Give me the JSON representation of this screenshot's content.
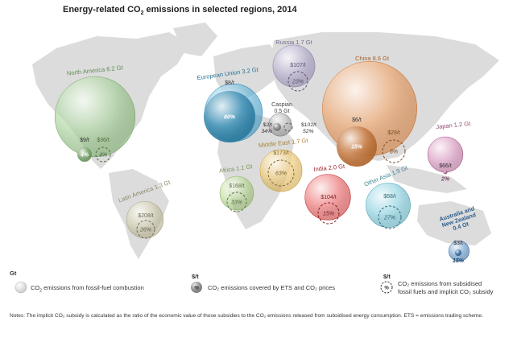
{
  "title": {
    "prefix": "Energy-related CO",
    "sub": "2",
    "suffix": " emissions in selected regions, 2014"
  },
  "chart_data": {
    "type": "bubble-map",
    "regions": [
      {
        "name": "North America",
        "gt_label": "6.2 Gt",
        "emissions_gt": 6.2,
        "subsidy_label": "$36/t",
        "subsidy_pct_label": "4%",
        "ets_label": "$9/t",
        "ets_pct_label": "4%",
        "color": "#8cc77a"
      },
      {
        "name": "European Union",
        "gt_label": "3.2 Gt",
        "emissions_gt": 3.2,
        "ets_label": "$8/t",
        "ets_pct_label": "60%",
        "color": "#3aa6d8"
      },
      {
        "name": "Russia",
        "gt_label": "1.7 Gt",
        "emissions_gt": 1.7,
        "subsidy_label": "$107/t",
        "subsidy_pct_label": "23%",
        "color": "#a79ac9"
      },
      {
        "name": "Caspian",
        "gt_label": "0.5 Gt",
        "emissions_gt": 0.5,
        "ets_label": "$2/t",
        "ets_pct_label": "34%",
        "subsidy_label": "$102/t",
        "subsidy_pct_label": "52%",
        "color": "#9a9a9a"
      },
      {
        "name": "China",
        "gt_label": "8.6 Gt",
        "emissions_gt": 8.6,
        "ets_label": "$6/t",
        "ets_pct_label": "15%",
        "subsidy_label": "$29/t",
        "subsidy_pct_label": "8%",
        "color": "#f08a3c"
      },
      {
        "name": "Japan",
        "gt_label": "1.2 Gt",
        "emissions_gt": 1.2,
        "ets_label": "$66/t",
        "ets_pct_label": "2%",
        "color": "#c86fa6"
      },
      {
        "name": "Middle East",
        "gt_label": "1.7 Gt",
        "emissions_gt": 1.7,
        "subsidy_label": "$173/t",
        "subsidy_pct_label": "63%",
        "color": "#f2c04b"
      },
      {
        "name": "Africa",
        "gt_label": "1.1 Gt",
        "emissions_gt": 1.1,
        "subsidy_label": "$168/t",
        "subsidy_pct_label": "33%",
        "color": "#a8d27a"
      },
      {
        "name": "India",
        "gt_label": "2.0 Gt",
        "emissions_gt": 2.0,
        "subsidy_label": "$104/t",
        "subsidy_pct_label": "15%",
        "color": "#e5393b"
      },
      {
        "name": "Other Asia",
        "gt_label": "1.9 Gt",
        "emissions_gt": 1.9,
        "subsidy_label": "$68/t",
        "subsidy_pct_label": "27%",
        "color": "#5fc0d4"
      },
      {
        "name": "Latin America",
        "gt_label": "1.3 Gt",
        "emissions_gt": 1.3,
        "subsidy_label": "$208/t",
        "subsidy_pct_label": "26%",
        "color": "#c9c39a"
      },
      {
        "name": "Australia and New Zealand",
        "gt_label": "0.4 Gt",
        "emissions_gt": 0.4,
        "ets_label": "$3/t",
        "ets_pct_label": "15%",
        "color": "#3a7bbd"
      }
    ]
  },
  "legend": {
    "gt_unit": "Gt",
    "gt_text_prefix": "CO",
    "gt_text_sub": "2",
    "gt_text_suffix": " emissions from fossil-fuel combustion",
    "ets_unit": "$/t",
    "ets_symbol": "%",
    "ets_text": "CO₂ emissions covered by ETS and CO₂ prices",
    "sub_unit": "$/t",
    "sub_symbol": "%",
    "sub_text_line1": "CO₂ emissions from subsidised",
    "sub_text_line2": "fossil fuels and implicit CO₂ subsidy"
  },
  "notes": {
    "text": "Notes: The implicit CO₂ subsidy is calculated as the ratio of the economic value of those subsidies to the CO₂ emissions released from subsidised energy consumption. ETS = emissions trading scheme."
  },
  "colors": {
    "land": "#dcdcdc",
    "background": "#ffffff"
  }
}
